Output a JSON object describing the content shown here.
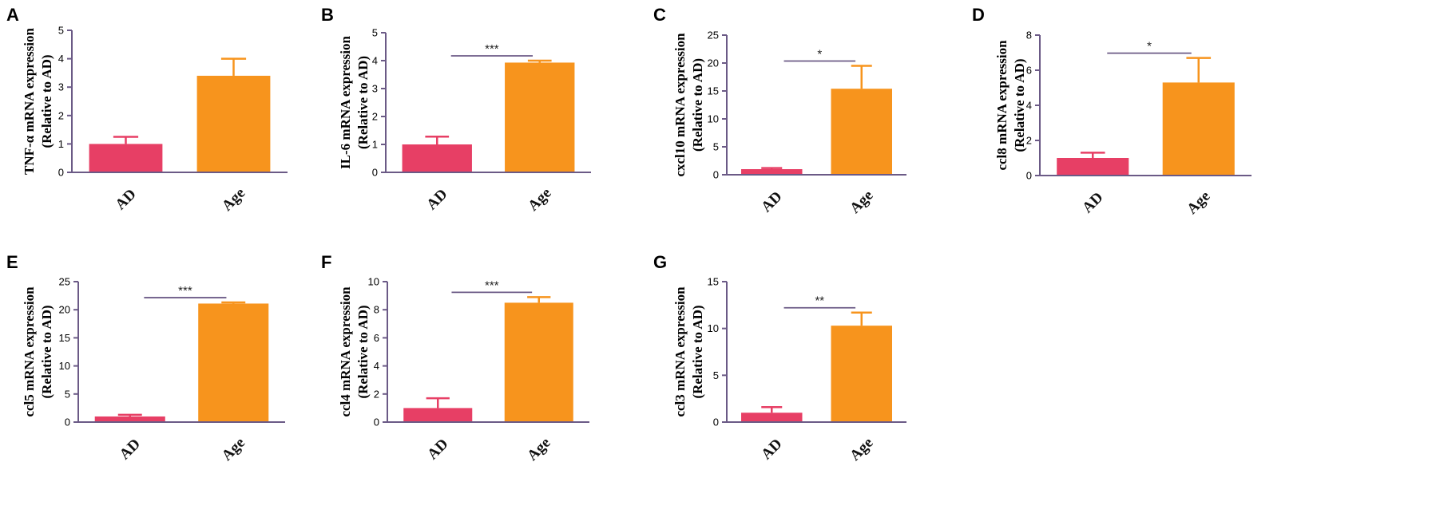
{
  "colors": {
    "ad": "#e73f65",
    "age": "#f7941d",
    "axis": "#6b5a86",
    "sigline": "#6b5a86"
  },
  "chart_data": [
    {
      "type": "bar",
      "panel": "A",
      "categories": [
        "AD",
        "Age"
      ],
      "values": [
        1.0,
        3.4
      ],
      "errors": [
        0.25,
        0.6
      ],
      "ylabel_line1": "TNF-α  mRNA expression",
      "ylabel_line2": "(Relative to AD)",
      "ylim": [
        0,
        5
      ],
      "yticks": [
        "0",
        "1",
        "2",
        "3",
        "4",
        "5"
      ],
      "significance": ""
    },
    {
      "type": "bar",
      "panel": "B",
      "categories": [
        "AD",
        "Age"
      ],
      "values": [
        1.0,
        3.93
      ],
      "errors": [
        0.28,
        0.07
      ],
      "ylabel_line1": "IL-6 mRNA expression",
      "ylabel_line2": "(Relative to AD)",
      "ylim": [
        0,
        5
      ],
      "yticks": [
        "0",
        "1",
        "2",
        "3",
        "4",
        "5"
      ],
      "significance": "***"
    },
    {
      "type": "bar",
      "panel": "C",
      "categories": [
        "AD",
        "Age"
      ],
      "values": [
        1.0,
        15.4
      ],
      "errors": [
        0.2,
        4.1
      ],
      "ylabel_line1": "cxcl10 mRNA expression",
      "ylabel_line2": "(Relative to AD)",
      "ylim": [
        0,
        25
      ],
      "yticks": [
        "0",
        "5",
        "10",
        "15",
        "20",
        "25"
      ],
      "significance": "*"
    },
    {
      "type": "bar",
      "panel": "D",
      "categories": [
        "AD",
        "Age"
      ],
      "values": [
        1.0,
        5.3
      ],
      "errors": [
        0.3,
        1.4
      ],
      "ylabel_line1": "ccl8 mRNA expression",
      "ylabel_line2": "(Relative to AD)",
      "ylim": [
        0,
        8
      ],
      "yticks": [
        "0",
        "2",
        "4",
        "6",
        "8"
      ],
      "significance": "*"
    },
    {
      "type": "bar",
      "panel": "E",
      "categories": [
        "AD",
        "Age"
      ],
      "values": [
        1.0,
        21.1
      ],
      "errors": [
        0.3,
        0.2
      ],
      "ylabel_line1": "ccl5 mRNA expression",
      "ylabel_line2": "(Relative to AD)",
      "ylim": [
        0,
        25
      ],
      "yticks": [
        "0",
        "5",
        "10",
        "15",
        "20",
        "25"
      ],
      "significance": "***"
    },
    {
      "type": "bar",
      "panel": "F",
      "categories": [
        "AD",
        "Age"
      ],
      "values": [
        1.0,
        8.5
      ],
      "errors": [
        0.7,
        0.4
      ],
      "ylabel_line1": "ccl4 mRNA expression",
      "ylabel_line2": "(Relative to AD)",
      "ylim": [
        0,
        10
      ],
      "yticks": [
        "0",
        "2",
        "4",
        "6",
        "8",
        "10"
      ],
      "significance": "***"
    },
    {
      "type": "bar",
      "panel": "G",
      "categories": [
        "AD",
        "Age"
      ],
      "values": [
        1.0,
        10.3
      ],
      "errors": [
        0.6,
        1.4
      ],
      "ylabel_line1": "ccl3 mRNA expression",
      "ylabel_line2": "(Relative to AD)",
      "ylim": [
        0,
        15
      ],
      "yticks": [
        "0",
        "5",
        "10",
        "15"
      ],
      "significance": "**"
    }
  ]
}
